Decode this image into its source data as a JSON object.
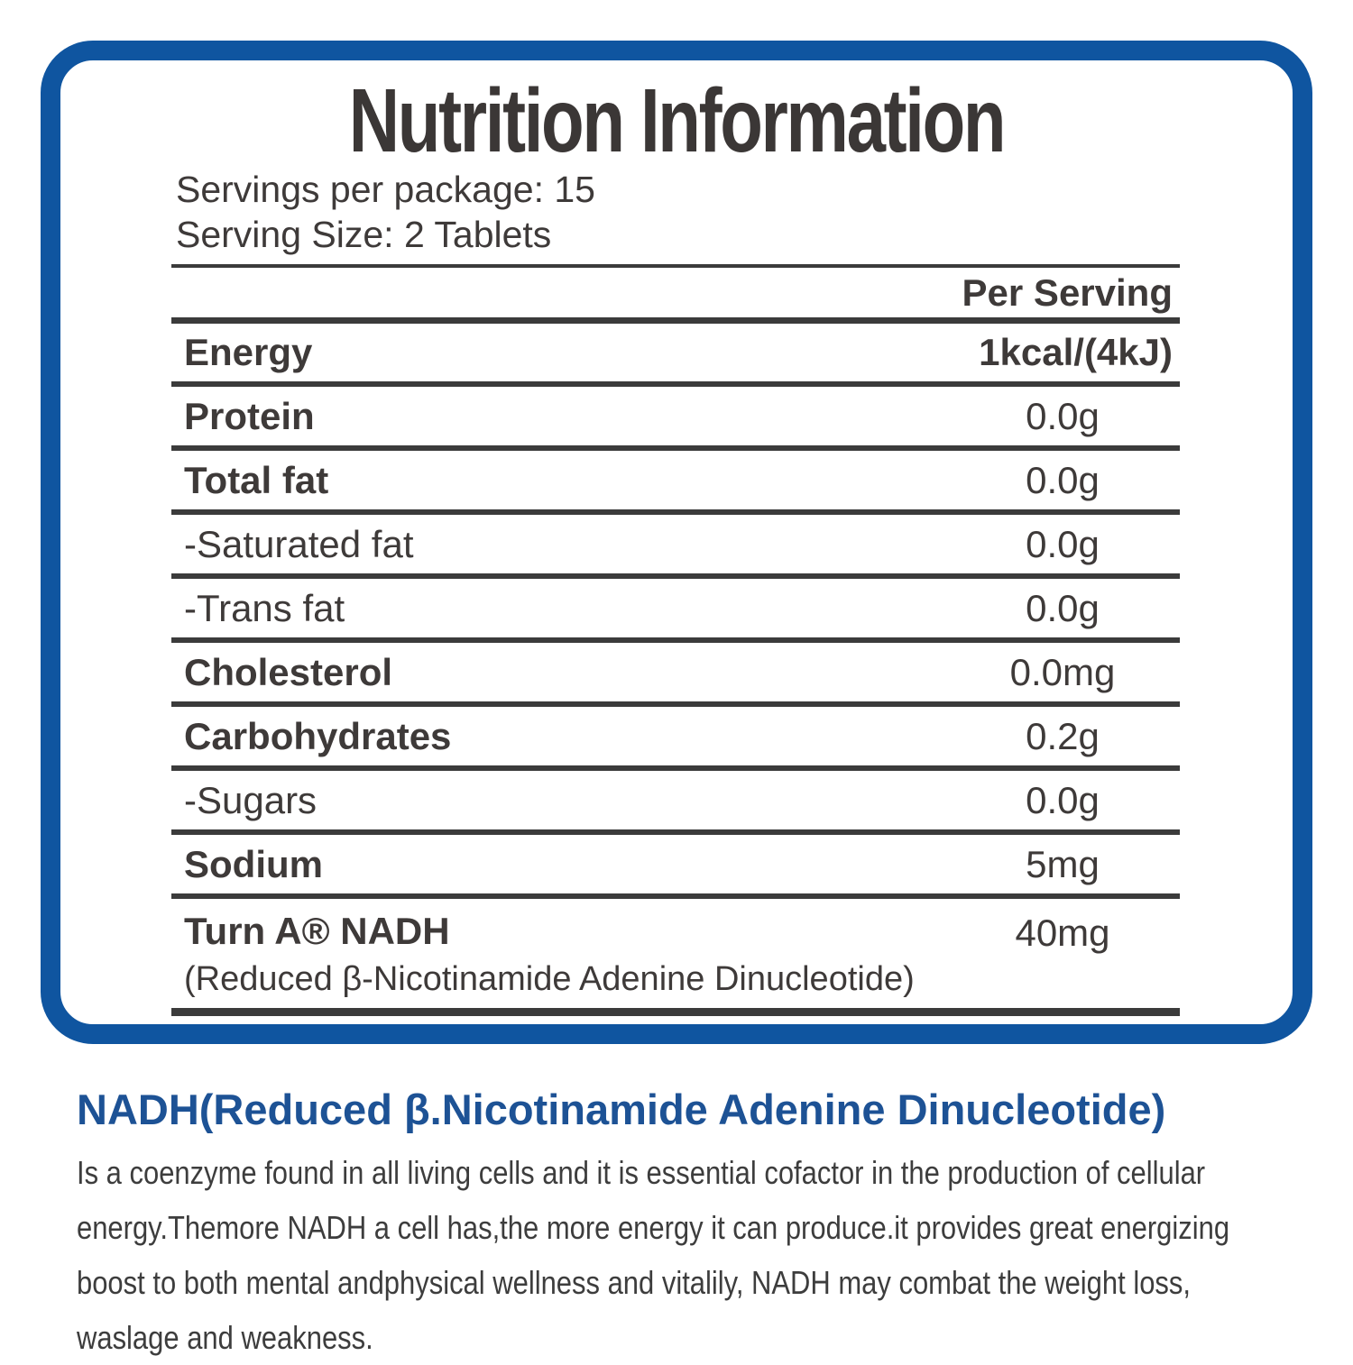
{
  "panel": {
    "title": "Nutrition Information",
    "meta": {
      "servings_per_package": "Servings per package: 15",
      "serving_size": "Serving Size: 2 Tablets"
    },
    "table": {
      "column_header": "Per Serving",
      "rows": [
        {
          "label": "Energy",
          "value": "1kcal/(4kJ)",
          "bold": true,
          "value_bold": true,
          "value_align": "right"
        },
        {
          "label": "Protein",
          "value": "0.0g",
          "bold": true
        },
        {
          "label": "Total fat",
          "value": "0.0g",
          "bold": true
        },
        {
          "label": "-Saturated fat",
          "value": "0.0g",
          "bold": false
        },
        {
          "label": "-Trans fat",
          "value": "0.0g",
          "bold": false
        },
        {
          "label": "Cholesterol",
          "value": "0.0mg",
          "bold": true
        },
        {
          "label": "Carbohydrates",
          "value": "0.2g",
          "bold": true
        },
        {
          "label": "-Sugars",
          "value": "0.0g",
          "bold": false
        },
        {
          "label": "Sodium",
          "value": "5mg",
          "bold": true
        },
        {
          "label": "Turn A® NADH",
          "sublabel": "(Reduced β-Nicotinamide Adenine Dinucleotide)",
          "value": "40mg",
          "bold": true
        }
      ]
    }
  },
  "footer": {
    "heading": "NADH(Reduced β.Nicotinamide Adenine Dinucleotide)",
    "body_lines": [
      "Is a coenzyme found in all living cells and it is essential cofactor in the production of cellular",
      "energy.Themore NADH a cell has,the more energy it can produce.it provides great energizing",
      "boost to both mental andphysical wellness and vitalily, NADH may combat the weight loss,",
      "waslage and weakness."
    ]
  },
  "colors": {
    "border_blue": "#0F55A0",
    "heading_blue": "#1D5295",
    "rule_dark": "#3B3B3B",
    "text_dark": "#3E3A39"
  }
}
